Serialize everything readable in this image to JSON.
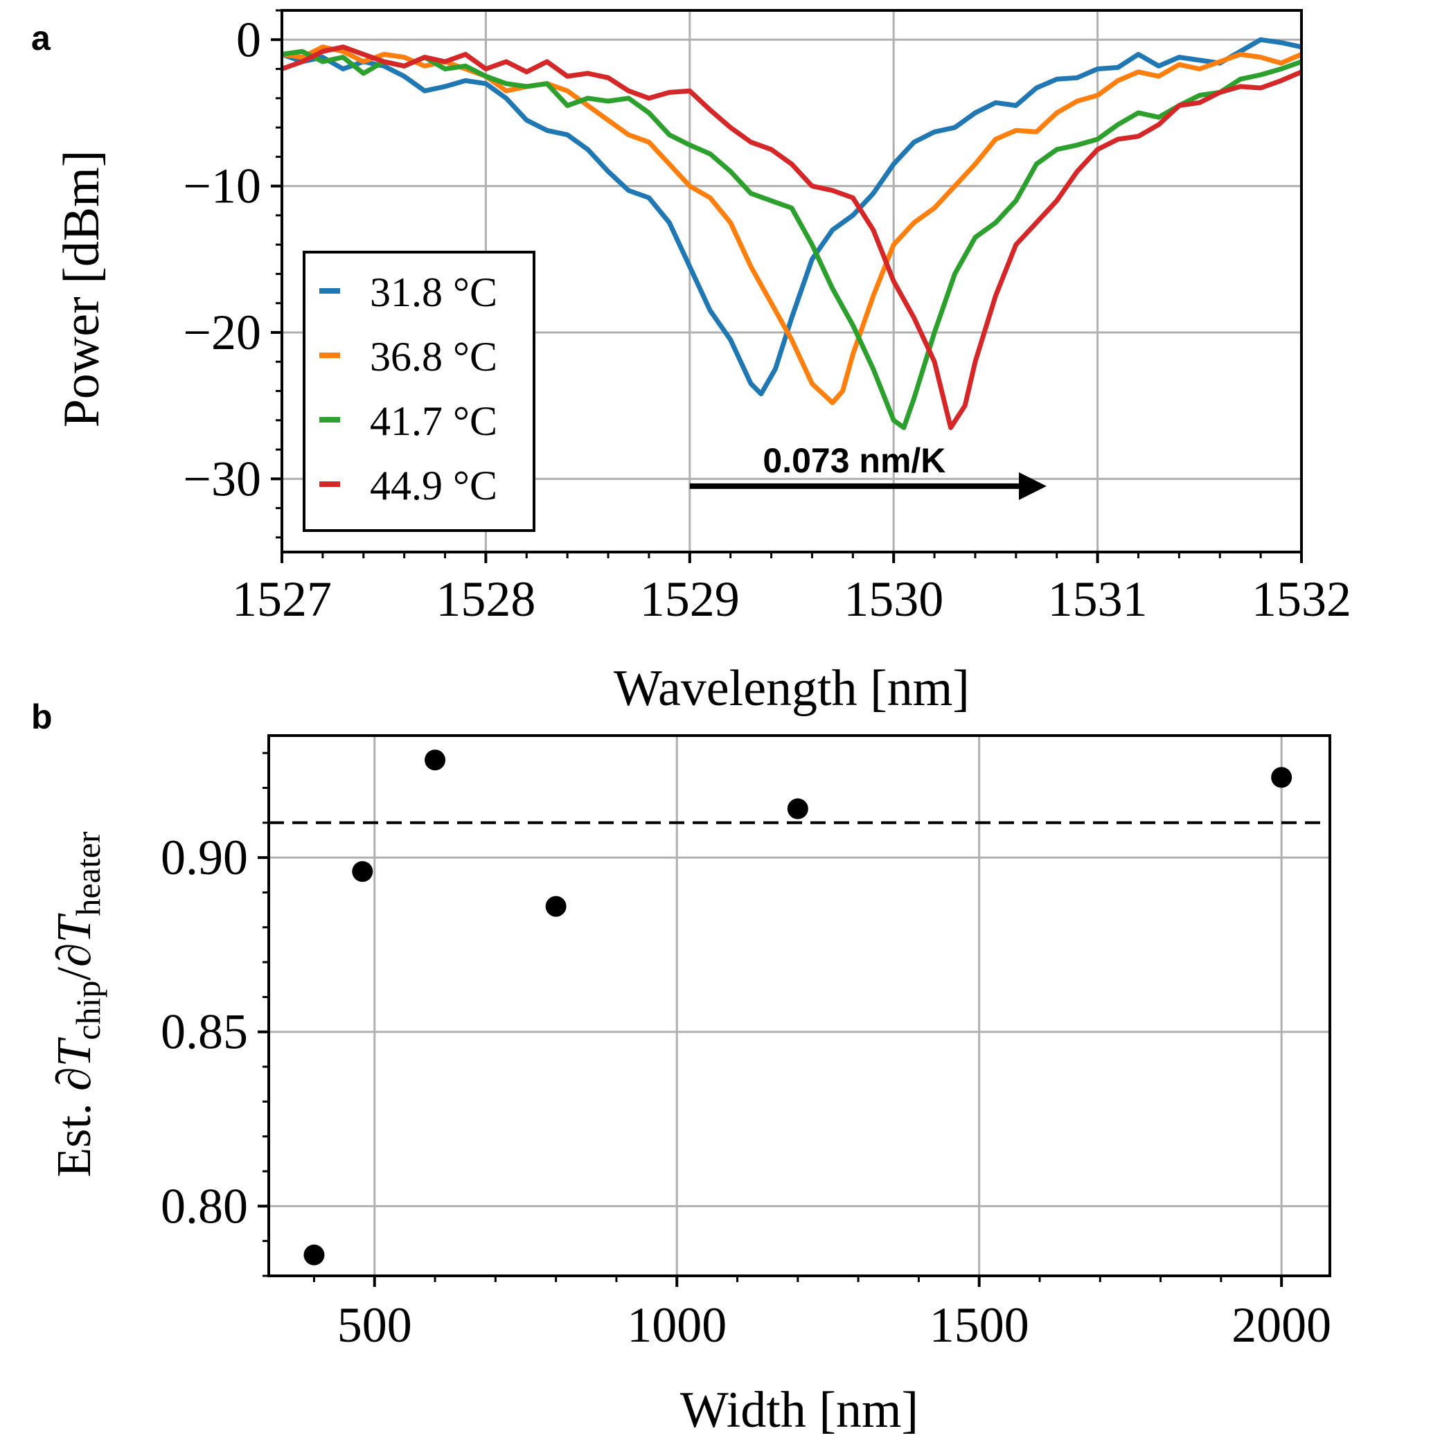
{
  "chart_data": [
    {
      "panel_label": "a",
      "type": "line",
      "xlabel": "Wavelength [nm]",
      "ylabel": "Power [dBm]",
      "xlim": [
        1527,
        1532
      ],
      "ylim": [
        -35,
        2
      ],
      "xticks": [
        1527,
        1528,
        1529,
        1530,
        1531,
        1532
      ],
      "xtick_labels": [
        "1527",
        "1528",
        "1529",
        "1530",
        "1531",
        "1532"
      ],
      "yticks": [
        0,
        -10,
        -20,
        -30
      ],
      "ytick_labels": [
        "0",
        "−10",
        "−20",
        "−30"
      ],
      "grid": true,
      "legend_position": "lower-left",
      "annotation": {
        "text": "0.073 nm/K",
        "arrow_from": [
          1529.0,
          -30.5
        ],
        "arrow_to": [
          1530.75,
          -30.5
        ]
      },
      "series": [
        {
          "name": "31.8 °C",
          "color": "#1f77b4",
          "x": [
            1527.0,
            1527.1,
            1527.2,
            1527.3,
            1527.4,
            1527.5,
            1527.6,
            1527.7,
            1527.8,
            1527.9,
            1528.0,
            1528.1,
            1528.2,
            1528.3,
            1528.4,
            1528.5,
            1528.6,
            1528.7,
            1528.8,
            1528.9,
            1529.0,
            1529.1,
            1529.2,
            1529.3,
            1529.35,
            1529.42,
            1529.5,
            1529.6,
            1529.7,
            1529.8,
            1529.9,
            1530.0,
            1530.1,
            1530.2,
            1530.3,
            1530.4,
            1530.5,
            1530.6,
            1530.7,
            1530.8,
            1530.9,
            1531.0,
            1531.1,
            1531.2,
            1531.3,
            1531.4,
            1531.5,
            1531.6,
            1531.7,
            1531.8,
            1531.9,
            1532.0
          ],
          "y": [
            -1.0,
            -1.5,
            -1.2,
            -2.0,
            -1.5,
            -1.8,
            -2.5,
            -3.5,
            -3.2,
            -2.8,
            -3.0,
            -4.0,
            -5.5,
            -6.2,
            -6.5,
            -7.5,
            -9.0,
            -10.3,
            -10.8,
            -12.5,
            -15.5,
            -18.5,
            -20.5,
            -23.5,
            -24.2,
            -22.5,
            -19.0,
            -15.0,
            -13.0,
            -12.0,
            -10.5,
            -8.5,
            -7.0,
            -6.3,
            -6.0,
            -5.0,
            -4.3,
            -4.5,
            -3.3,
            -2.7,
            -2.6,
            -2.0,
            -1.9,
            -1.0,
            -1.8,
            -1.2,
            -1.4,
            -1.6,
            -0.8,
            0.0,
            -0.2,
            -0.5
          ]
        },
        {
          "name": "36.8 °C",
          "color": "#ff7f0e",
          "x": [
            1527.0,
            1527.1,
            1527.2,
            1527.3,
            1527.4,
            1527.5,
            1527.6,
            1527.7,
            1527.8,
            1527.9,
            1528.0,
            1528.1,
            1528.2,
            1528.3,
            1528.4,
            1528.5,
            1528.6,
            1528.7,
            1528.8,
            1528.9,
            1529.0,
            1529.1,
            1529.2,
            1529.3,
            1529.4,
            1529.5,
            1529.6,
            1529.7,
            1529.75,
            1529.8,
            1529.9,
            1530.0,
            1530.1,
            1530.2,
            1530.3,
            1530.4,
            1530.5,
            1530.6,
            1530.7,
            1530.8,
            1530.9,
            1531.0,
            1531.1,
            1531.2,
            1531.3,
            1531.4,
            1531.5,
            1531.6,
            1531.7,
            1531.8,
            1531.9,
            1532.0
          ],
          "y": [
            -1.0,
            -1.2,
            -0.5,
            -0.8,
            -1.5,
            -1.0,
            -1.2,
            -1.8,
            -1.5,
            -2.0,
            -2.5,
            -3.5,
            -3.2,
            -3.0,
            -3.5,
            -4.5,
            -5.5,
            -6.5,
            -7.0,
            -8.5,
            -10.0,
            -10.8,
            -12.5,
            -15.5,
            -18.0,
            -20.5,
            -23.5,
            -24.8,
            -24.0,
            -21.5,
            -17.5,
            -14.0,
            -12.5,
            -11.5,
            -10.0,
            -8.5,
            -6.8,
            -6.2,
            -6.3,
            -5.0,
            -4.2,
            -3.8,
            -2.8,
            -2.2,
            -2.5,
            -1.7,
            -2.0,
            -1.5,
            -1.0,
            -1.2,
            -1.6,
            -1.0
          ]
        },
        {
          "name": "41.7 °C",
          "color": "#2ca02c",
          "x": [
            1527.0,
            1527.1,
            1527.2,
            1527.3,
            1527.4,
            1527.5,
            1527.6,
            1527.7,
            1527.8,
            1527.9,
            1528.0,
            1528.1,
            1528.2,
            1528.3,
            1528.4,
            1528.5,
            1528.6,
            1528.7,
            1528.8,
            1528.9,
            1529.0,
            1529.1,
            1529.2,
            1529.3,
            1529.4,
            1529.5,
            1529.6,
            1529.7,
            1529.8,
            1529.9,
            1530.0,
            1530.05,
            1530.1,
            1530.2,
            1530.3,
            1530.4,
            1530.5,
            1530.6,
            1530.7,
            1530.8,
            1530.9,
            1531.0,
            1531.1,
            1531.2,
            1531.3,
            1531.4,
            1531.5,
            1531.6,
            1531.7,
            1531.8,
            1531.9,
            1532.0
          ],
          "y": [
            -1.0,
            -0.8,
            -1.5,
            -1.2,
            -2.3,
            -1.5,
            -1.8,
            -1.2,
            -2.0,
            -1.8,
            -2.5,
            -3.0,
            -3.2,
            -3.0,
            -4.5,
            -4.0,
            -4.2,
            -4.0,
            -5.0,
            -6.5,
            -7.2,
            -7.8,
            -9.0,
            -10.5,
            -11.0,
            -11.5,
            -14.0,
            -17.0,
            -19.5,
            -22.5,
            -26.0,
            -26.5,
            -24.5,
            -20.0,
            -16.0,
            -13.5,
            -12.5,
            -11.0,
            -8.5,
            -7.5,
            -7.2,
            -6.8,
            -5.8,
            -5.0,
            -5.3,
            -4.5,
            -3.8,
            -3.6,
            -2.7,
            -2.4,
            -2.0,
            -1.5
          ]
        },
        {
          "name": "44.9 °C",
          "color": "#d62728",
          "x": [
            1527.0,
            1527.1,
            1527.2,
            1527.3,
            1527.4,
            1527.5,
            1527.6,
            1527.7,
            1527.8,
            1527.9,
            1528.0,
            1528.1,
            1528.2,
            1528.3,
            1528.4,
            1528.5,
            1528.6,
            1528.7,
            1528.8,
            1528.9,
            1529.0,
            1529.1,
            1529.2,
            1529.3,
            1529.4,
            1529.5,
            1529.6,
            1529.7,
            1529.8,
            1529.9,
            1530.0,
            1530.1,
            1530.2,
            1530.28,
            1530.35,
            1530.4,
            1530.5,
            1530.6,
            1530.7,
            1530.8,
            1530.9,
            1531.0,
            1531.1,
            1531.2,
            1531.3,
            1531.4,
            1531.5,
            1531.6,
            1531.7,
            1531.8,
            1531.9,
            1532.0
          ],
          "y": [
            -2.0,
            -1.5,
            -0.8,
            -0.5,
            -1.0,
            -1.5,
            -1.8,
            -1.2,
            -1.5,
            -1.0,
            -2.0,
            -1.5,
            -2.2,
            -1.5,
            -2.5,
            -2.3,
            -2.6,
            -3.5,
            -4.0,
            -3.6,
            -3.5,
            -4.8,
            -6.0,
            -7.0,
            -7.5,
            -8.5,
            -10.0,
            -10.3,
            -10.8,
            -13.0,
            -16.5,
            -19.0,
            -22.0,
            -26.5,
            -25.0,
            -22.0,
            -17.5,
            -14.0,
            -12.5,
            -11.0,
            -9.0,
            -7.5,
            -6.8,
            -6.6,
            -5.8,
            -4.5,
            -4.3,
            -3.6,
            -3.2,
            -3.3,
            -2.8,
            -2.2
          ]
        }
      ]
    },
    {
      "panel_label": "b",
      "type": "scatter",
      "xlabel": "Width [nm]",
      "ylabel": "Est. ∂T_chip/∂T_heater",
      "xlim": [
        325,
        2080
      ],
      "ylim": [
        0.78,
        0.935
      ],
      "xticks": [
        500,
        1000,
        1500,
        2000
      ],
      "xtick_labels": [
        "500",
        "1000",
        "1500",
        "2000"
      ],
      "yticks": [
        0.8,
        0.85,
        0.9
      ],
      "ytick_labels": [
        "0.80",
        "0.85",
        "0.90"
      ],
      "grid": true,
      "reference_line": {
        "style": "dashed",
        "y": 0.91
      },
      "points": {
        "x": [
          400,
          480,
          600,
          800,
          1200,
          2000
        ],
        "y": [
          0.786,
          0.896,
          0.928,
          0.886,
          0.914,
          0.923
        ]
      }
    }
  ],
  "labels": {
    "panel_a": "a",
    "panel_b": "b",
    "a_xlabel": "Wavelength [nm]",
    "a_ylabel": "Power [dBm]",
    "b_xlabel": "Width [nm]",
    "b_ylabel_prefix": "Est. ∂",
    "b_ylabel_T": "T",
    "b_ylabel_sub1": "chip",
    "b_ylabel_slash": "/∂",
    "b_ylabel_sub2": "heater",
    "annotation": "0.073 nm/K"
  }
}
